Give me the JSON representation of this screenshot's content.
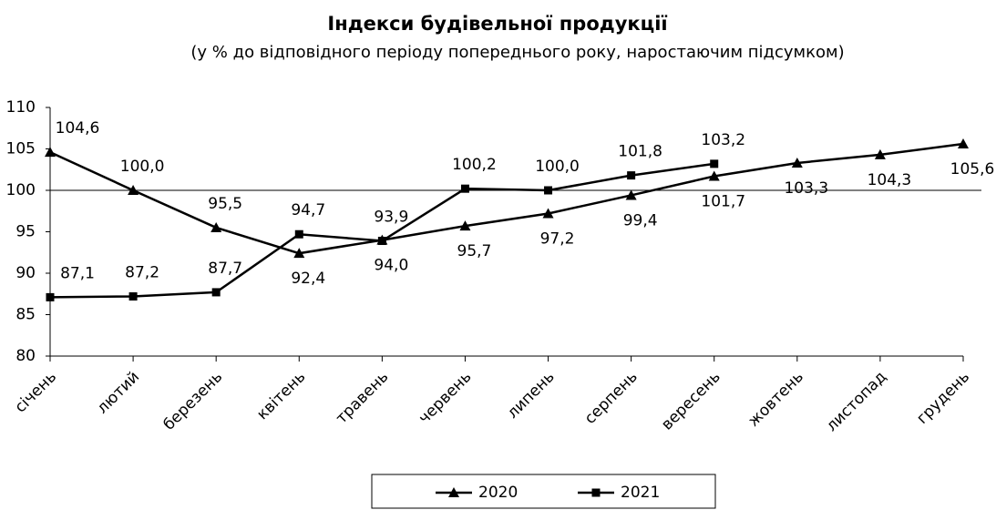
{
  "chart_data": {
    "type": "line",
    "title": "Індекси будівельної продукції",
    "subtitle": "(у % до відповідного періоду попереднього року, наростаючим підсумком)",
    "categories": [
      "січень",
      "лютий",
      "березень",
      "квітень",
      "травень",
      "червень",
      "липень",
      "серпень",
      "вересень",
      "жовтень",
      "листопад",
      "грудень"
    ],
    "series": [
      {
        "name": "2020",
        "color": "#000000",
        "marker": "triangle",
        "values": [
          104.6,
          100.0,
          95.5,
          92.4,
          94.0,
          95.7,
          97.2,
          99.4,
          101.7,
          103.3,
          104.3,
          105.6
        ],
        "value_labels": [
          "104,6",
          "100,0",
          "95,5",
          "92,4",
          "94,0",
          "95,7",
          "97,2",
          "99,4",
          "101,7",
          "103,3",
          "104,3",
          "105,6"
        ]
      },
      {
        "name": "2021",
        "color": "#000000",
        "marker": "square",
        "values": [
          87.1,
          87.2,
          87.7,
          94.7,
          93.9,
          100.2,
          100.0,
          101.8,
          103.2,
          null,
          null,
          null
        ],
        "value_labels": [
          "87,1",
          "87,2",
          "87,7",
          "94,7",
          "93,9",
          "100,2",
          "100,0",
          "101,8",
          "103,2",
          null,
          null,
          null
        ]
      }
    ],
    "ylim": [
      80,
      110
    ],
    "yticks": [
      80,
      85,
      90,
      95,
      100,
      105,
      110
    ],
    "reference_line": 100,
    "legend": "bottom"
  }
}
